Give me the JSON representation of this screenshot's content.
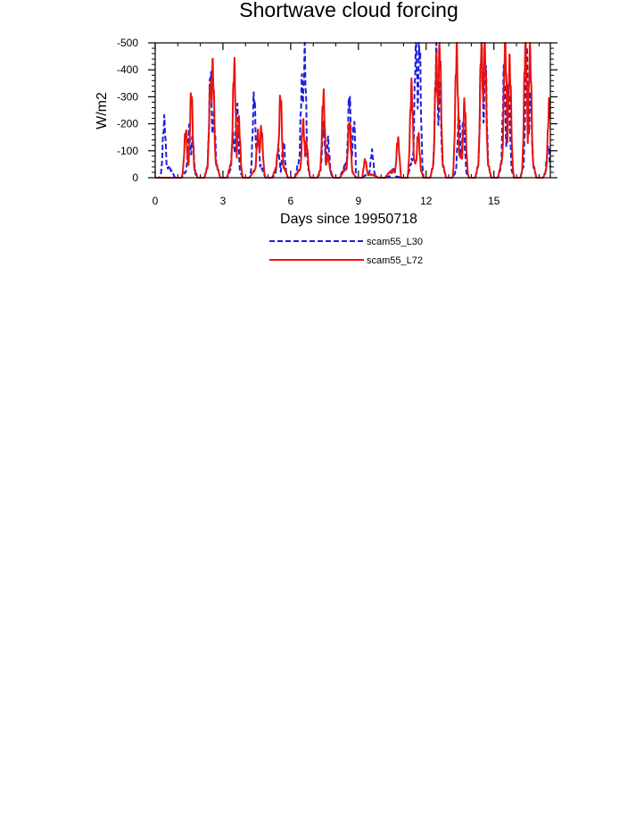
{
  "chart_data": {
    "type": "line",
    "title": "Shortwave cloud forcing",
    "xlabel": "Days since 19950718",
    "ylabel": "W/m2",
    "xlim": [
      0,
      17.5
    ],
    "ylim": [
      0,
      -500
    ],
    "x_ticks": [
      0,
      3,
      6,
      9,
      12,
      15
    ],
    "x_tick_labels": [
      "0",
      "3",
      "6",
      "9",
      "12",
      "15"
    ],
    "y_ticks": [
      0,
      -100,
      -200,
      -300,
      -400,
      -500
    ],
    "y_tick_labels": [
      "0",
      "-100",
      "-200",
      "-300",
      "-400",
      "-500"
    ],
    "grid": false,
    "legend_position": "bottom",
    "series": [
      {
        "name": "scam55_L30",
        "color": "#1f1fdd",
        "dash": "dashed",
        "days": [
          {
            "day": 0,
            "peaks": [
              {
                "t": 0.4,
                "v": -210
              }
            ]
          },
          {
            "day": 1,
            "peaks": [
              {
                "t": 0.5,
                "v": -180
              },
              {
                "t": 0.65,
                "v": -140
              }
            ]
          },
          {
            "day": 2,
            "peaks": [
              {
                "t": 0.45,
                "v": -380
              },
              {
                "t": 0.6,
                "v": -230
              }
            ]
          },
          {
            "day": 3,
            "peaks": [
              {
                "t": 0.45,
                "v": -150
              },
              {
                "t": 0.62,
                "v": -260
              }
            ]
          },
          {
            "day": 4,
            "peaks": [
              {
                "t": 0.38,
                "v": -300
              },
              {
                "t": 0.55,
                "v": -150
              }
            ]
          },
          {
            "day": 5,
            "peaks": [
              {
                "t": 0.45,
                "v": -100
              },
              {
                "t": 0.68,
                "v": -130
              }
            ]
          },
          {
            "day": 6,
            "peaks": [
              {
                "t": 0.5,
                "v": -350
              },
              {
                "t": 0.62,
                "v": -450
              }
            ]
          },
          {
            "day": 7,
            "peaks": [
              {
                "t": 0.45,
                "v": -190
              },
              {
                "t": 0.65,
                "v": -140
              }
            ]
          },
          {
            "day": 8,
            "peaks": [
              {
                "t": 0.6,
                "v": -295
              },
              {
                "t": 0.8,
                "v": -200
              }
            ]
          },
          {
            "day": 9,
            "peaks": [
              {
                "t": 0.6,
                "v": -95
              }
            ]
          },
          {
            "day": 10,
            "peaks": [
              {
                "t": 0.55,
                "v": -35
              }
            ]
          },
          {
            "day": 11,
            "peaks": [
              {
                "t": 0.55,
                "v": -500
              },
              {
                "t": 0.7,
                "v": -500
              }
            ]
          },
          {
            "day": 12,
            "peaks": [
              {
                "t": 0.45,
                "v": -450
              },
              {
                "t": 0.6,
                "v": -330
              }
            ]
          },
          {
            "day": 13,
            "peaks": [
              {
                "t": 0.45,
                "v": -225
              },
              {
                "t": 0.65,
                "v": -200
              }
            ]
          },
          {
            "day": 14,
            "peaks": [
              {
                "t": 0.45,
                "v": -500
              },
              {
                "t": 0.62,
                "v": -420
              }
            ]
          },
          {
            "day": 15,
            "peaks": [
              {
                "t": 0.45,
                "v": -385
              },
              {
                "t": 0.65,
                "v": -330
              }
            ]
          },
          {
            "day": 16,
            "peaks": [
              {
                "t": 0.45,
                "v": -450
              },
              {
                "t": 0.62,
                "v": -300
              }
            ]
          },
          {
            "day": 17,
            "peaks": [
              {
                "t": 0.4,
                "v": -120
              }
            ]
          }
        ]
      },
      {
        "name": "scam55_L72",
        "color": "#e8140f",
        "dash": "solid",
        "days": [
          {
            "day": 0,
            "peaks": []
          },
          {
            "day": 1,
            "peaks": [
              {
                "t": 0.35,
                "v": -170
              },
              {
                "t": 0.6,
                "v": -305
              }
            ]
          },
          {
            "day": 2,
            "peaks": [
              {
                "t": 0.45,
                "v": -350
              },
              {
                "t": 0.55,
                "v": -405
              }
            ]
          },
          {
            "day": 3,
            "peaks": [
              {
                "t": 0.5,
                "v": -405
              },
              {
                "t": 0.7,
                "v": -210
              }
            ]
          },
          {
            "day": 4,
            "peaks": [
              {
                "t": 0.55,
                "v": -160
              },
              {
                "t": 0.7,
                "v": -180
              }
            ]
          },
          {
            "day": 5,
            "peaks": [
              {
                "t": 0.45,
                "v": -110
              },
              {
                "t": 0.55,
                "v": -295
              }
            ]
          },
          {
            "day": 6,
            "peaks": [
              {
                "t": 0.55,
                "v": -200
              },
              {
                "t": 0.7,
                "v": -125
              }
            ]
          },
          {
            "day": 7,
            "peaks": [
              {
                "t": 0.45,
                "v": -300
              },
              {
                "t": 0.65,
                "v": -80
              }
            ]
          },
          {
            "day": 8,
            "peaks": [
              {
                "t": 0.6,
                "v": -200
              }
            ]
          },
          {
            "day": 9,
            "peaks": [
              {
                "t": 0.3,
                "v": -65
              }
            ]
          },
          {
            "day": 10,
            "peaks": [
              {
                "t": 0.75,
                "v": -140
              }
            ]
          },
          {
            "day": 11,
            "peaks": [
              {
                "t": 0.35,
                "v": -330
              },
              {
                "t": 0.65,
                "v": -160
              }
            ]
          },
          {
            "day": 12,
            "peaks": [
              {
                "t": 0.45,
                "v": -420
              },
              {
                "t": 0.6,
                "v": -480
              }
            ]
          },
          {
            "day": 13,
            "peaks": [
              {
                "t": 0.35,
                "v": -460
              },
              {
                "t": 0.7,
                "v": -270
              }
            ]
          },
          {
            "day": 14,
            "peaks": [
              {
                "t": 0.45,
                "v": -500
              },
              {
                "t": 0.6,
                "v": -480
              }
            ]
          },
          {
            "day": 15,
            "peaks": [
              {
                "t": 0.5,
                "v": -500
              },
              {
                "t": 0.7,
                "v": -420
              }
            ]
          },
          {
            "day": 16,
            "peaks": [
              {
                "t": 0.4,
                "v": -500
              },
              {
                "t": 0.6,
                "v": -470
              }
            ]
          },
          {
            "day": 17,
            "peaks": [
              {
                "t": 0.45,
                "v": -270
              }
            ]
          }
        ]
      }
    ]
  }
}
